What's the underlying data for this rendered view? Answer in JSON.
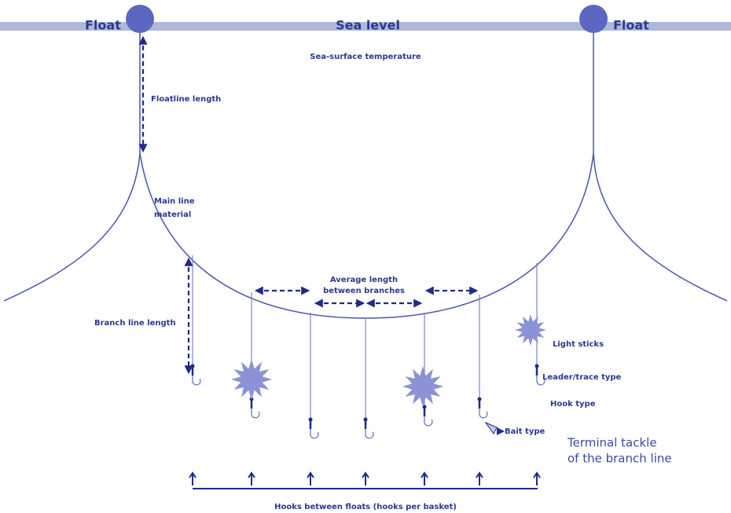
{
  "labels": {
    "float_left": "Float",
    "sea_level": "Sea level",
    "float_right": "Float",
    "sea_surface_temperature": "Sea-surface temperature",
    "floatline_length": "Floatline length",
    "main_line_material": [
      "Main line",
      "material"
    ],
    "average_length": [
      "Average length",
      "between branches"
    ],
    "branch_line_length": "Branch line length",
    "light_sticks": "Light sticks",
    "leader_trace_type": "Leader/trace type",
    "hook_type": "Hook type",
    "bait_type": "Bait type",
    "terminal_tackle": [
      "Terminal tackle",
      "of the branch line"
    ],
    "hooks_between_floats": "Hooks between floats (hooks per basket)"
  }
}
